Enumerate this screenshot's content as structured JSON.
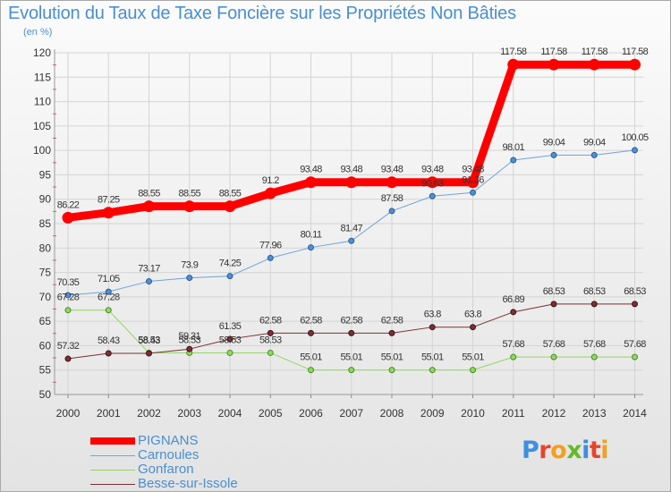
{
  "title": "Evolution du Taux de Taxe Foncière sur les Propriétés Non Bâties",
  "unit": "(en %)",
  "logo": {
    "letters": [
      "P",
      "r",
      "o",
      "x",
      "i",
      "t",
      "i"
    ],
    "colors": [
      "#3d8fe0",
      "#e8442b",
      "#f2a020",
      "#67b928",
      "#3d8fe0",
      "#e8442b",
      "#f2a020"
    ]
  },
  "chart_data": {
    "type": "line",
    "x": [
      "2000",
      "2001",
      "2002",
      "2003",
      "2004",
      "2005",
      "2006",
      "2007",
      "2008",
      "2009",
      "2010",
      "2011",
      "2012",
      "2013",
      "2014"
    ],
    "ylim": [
      50,
      120
    ],
    "yticks": [
      50,
      55,
      60,
      65,
      70,
      75,
      80,
      85,
      90,
      95,
      100,
      105,
      110,
      115,
      120
    ],
    "grid": true,
    "legend_position": "bottom-left",
    "series": [
      {
        "name": "PIGNANS",
        "color": "#ff0000",
        "values": [
          86.22,
          87.25,
          88.55,
          88.55,
          88.55,
          91.2,
          93.48,
          93.48,
          93.48,
          93.48,
          93.48,
          117.58,
          117.58,
          117.58,
          117.58
        ],
        "labels": [
          "86.22",
          "87.25",
          "88.55",
          "88.55",
          "88.55",
          "91.2",
          "93.48",
          "93.48",
          "93.48",
          "93.48",
          "93.48",
          "117.58",
          "117.58",
          "117.58",
          "117.58"
        ]
      },
      {
        "name": "Carnoules",
        "color": "#6ea3d9",
        "values": [
          70.35,
          71.05,
          73.17,
          73.9,
          74.25,
          77.96,
          80.11,
          81.47,
          87.58,
          90.63,
          91.36,
          98.01,
          99.04,
          99.04,
          100.05
        ],
        "labels": [
          "70.35",
          "71.05",
          "73.17",
          "73.9",
          "74.25",
          "77.96",
          "80.11",
          "81.47",
          "87.58",
          "90.63",
          "91.36",
          "98.01",
          "99.04",
          "99.04",
          "100.05"
        ]
      },
      {
        "name": "Gonfaron",
        "color": "#90d860",
        "values": [
          67.28,
          67.28,
          58.53,
          58.53,
          58.53,
          58.53,
          55.01,
          55.01,
          55.01,
          55.01,
          55.01,
          57.68,
          57.68,
          57.68,
          57.68
        ],
        "labels": [
          "67.28",
          "67.28",
          "58.53",
          "58.53",
          "58.53",
          "58.53",
          "55.01",
          "55.01",
          "55.01",
          "55.01",
          "55.01",
          "57.68",
          "57.68",
          "57.68",
          "57.68"
        ]
      },
      {
        "name": "Besse-sur-Issole",
        "color": "#7a2f35",
        "values": [
          57.32,
          58.43,
          58.43,
          59.31,
          61.35,
          62.58,
          62.58,
          62.58,
          62.58,
          63.8,
          63.8,
          66.89,
          68.53,
          68.53,
          68.53
        ],
        "labels": [
          "57.32",
          "58.43",
          "58.43",
          "59.31",
          "61.35",
          "62.58",
          "62.58",
          "62.58",
          "62.58",
          "63.8",
          "63.8",
          "66.89",
          "68.53",
          "68.53",
          "68.53"
        ]
      }
    ]
  }
}
